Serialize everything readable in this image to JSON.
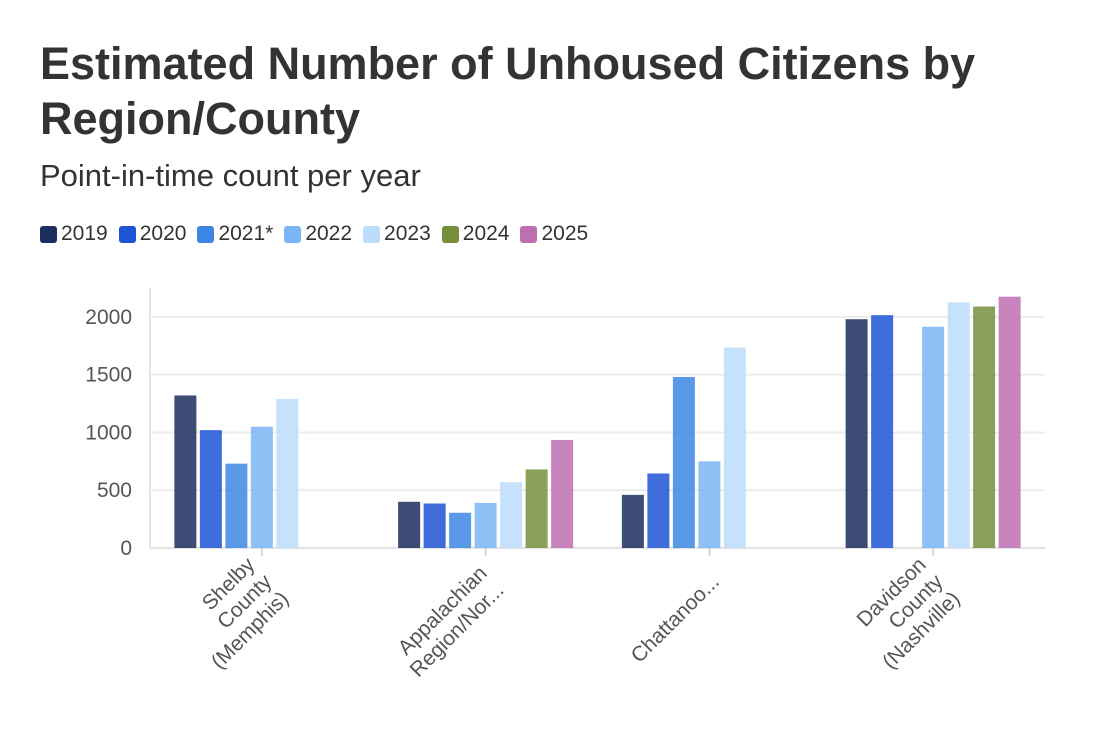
{
  "chart_data": {
    "type": "bar",
    "title": "Estimated Number of Unhoused Citizens by Region/County",
    "subtitle": "Point-in-time count per year",
    "categories": [
      [
        "Shelby",
        "County",
        "(Memphis)"
      ],
      [
        "Appalachian",
        "Region/Nor..."
      ],
      [
        "Chattanoo..."
      ],
      [
        "Davidson",
        "County",
        "(Nashville)"
      ]
    ],
    "series": [
      {
        "name": "2019",
        "color": "#1b2d5c",
        "values": [
          1320,
          400,
          460,
          1980
        ]
      },
      {
        "name": "2020",
        "color": "#1d55d6",
        "values": [
          1020,
          385,
          645,
          2015
        ]
      },
      {
        "name": "2021*",
        "color": "#3d86e4",
        "values": [
          730,
          305,
          1480,
          null
        ]
      },
      {
        "name": "2022",
        "color": "#7bb5f4",
        "values": [
          1050,
          390,
          750,
          1915
        ]
      },
      {
        "name": "2023",
        "color": "#bcdcfb",
        "values": [
          1290,
          570,
          1735,
          2125
        ]
      },
      {
        "name": "2024",
        "color": "#778f3c",
        "values": [
          null,
          680,
          null,
          2090
        ]
      },
      {
        "name": "2025",
        "color": "#bd6fb2",
        "values": [
          null,
          935,
          null,
          2175
        ]
      }
    ],
    "y_ticks": [
      "0",
      "500",
      "1000",
      "1500",
      "2000"
    ],
    "ylim": [
      0,
      2250
    ],
    "grid": true,
    "legend_position": "top-left",
    "xlabel": "",
    "ylabel": ""
  }
}
